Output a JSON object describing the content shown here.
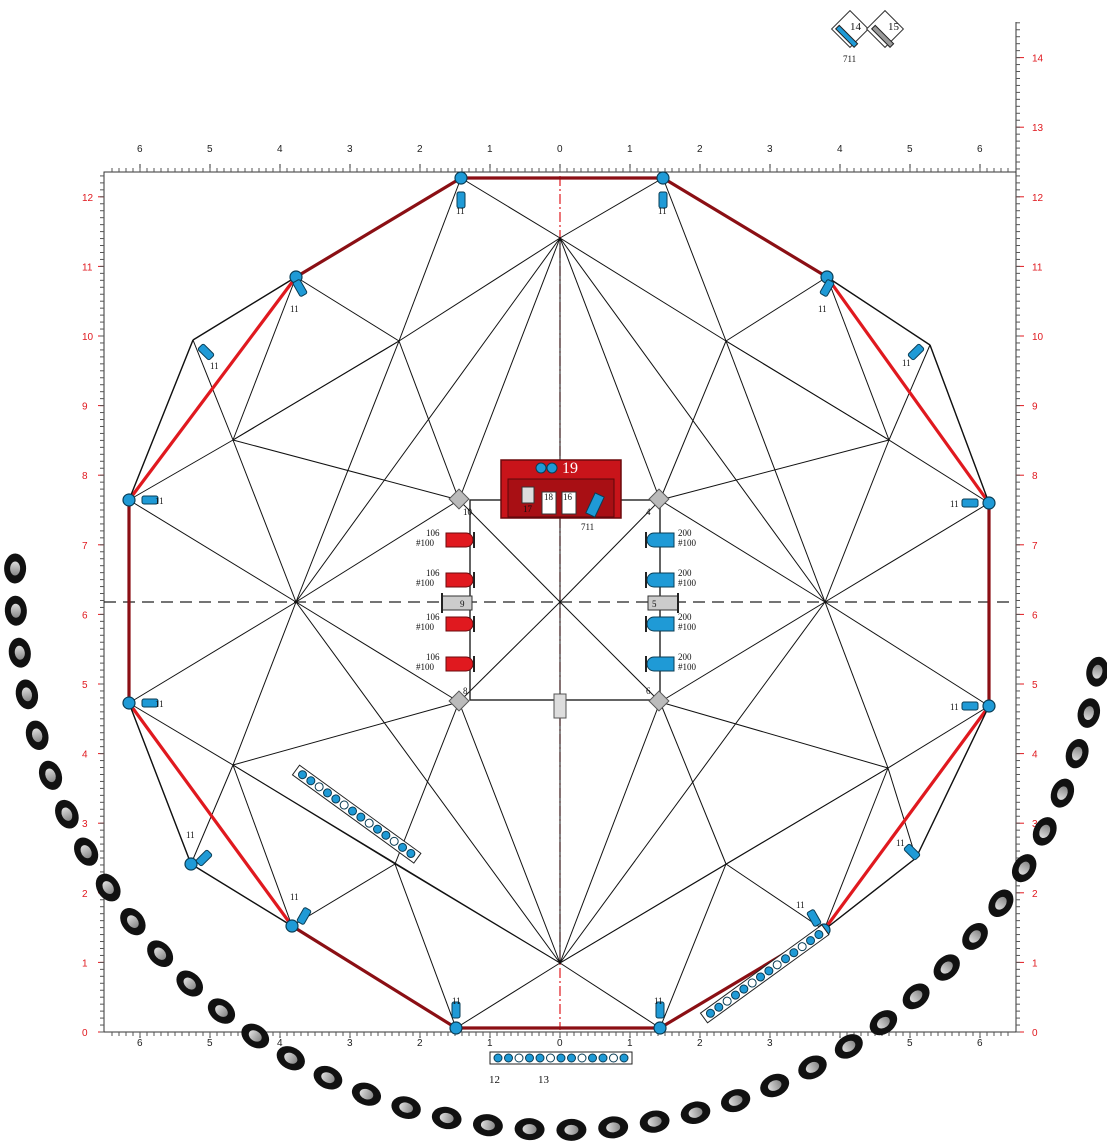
{
  "rulers": {
    "top_x": [
      "6",
      "5",
      "4",
      "3",
      "2",
      "1",
      "0",
      "1",
      "2",
      "3",
      "4",
      "5",
      "6"
    ],
    "bottom_x": [
      "6",
      "5",
      "4",
      "3",
      "2",
      "1",
      "0",
      "1",
      "2",
      "3",
      "4",
      "5",
      "6"
    ],
    "left_y": [
      "12",
      "11",
      "10",
      "9",
      "8",
      "7",
      "6",
      "5",
      "4",
      "3",
      "2",
      "1",
      "0"
    ],
    "right_y": [
      "14",
      "13",
      "12",
      "11",
      "10",
      "9",
      "8",
      "7",
      "6",
      "5",
      "4",
      "3",
      "2",
      "1",
      "0"
    ]
  },
  "legend": {
    "item14": "14",
    "item15": "15",
    "item14_sub": "711"
  },
  "labels": {
    "rig_point": "11",
    "truss_center": "19",
    "pit_711": "711",
    "pit_18": "18",
    "pit_16": "16",
    "pit_17": "17",
    "pit_left_num": "10",
    "pit_right_num": "4",
    "pit_bot_left": "8",
    "pit_bot_right": "6",
    "mid_left": "9",
    "mid_right": "5",
    "red_top": "106",
    "red_bot": "#100",
    "blue_top": "200",
    "blue_bot": "#100",
    "strip_12": "12",
    "strip_13": "13",
    "center_mark": "0",
    "small_1": "1"
  },
  "colors": {
    "red": "#e0191f",
    "darkred": "#8b0f14",
    "blue": "#1f9ad6",
    "black": "#111111",
    "grey": "#c8c8c8"
  }
}
